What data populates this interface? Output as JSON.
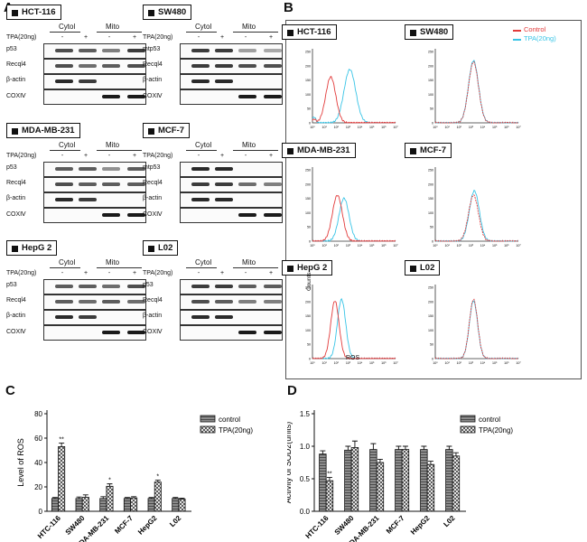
{
  "panels": {
    "a": "A",
    "b": "B",
    "c": "C",
    "d": "D"
  },
  "blots": [
    {
      "cell": "HCT-116",
      "headers": [
        "Cytol",
        "Mito"
      ],
      "treat": "TPA(20ng)",
      "signs": [
        "-",
        "+",
        "-",
        "+"
      ],
      "rows": [
        "p53",
        "Recql4",
        "β-actin",
        "COXⅣ"
      ]
    },
    {
      "cell": "SW480",
      "headers": [
        "Cytol",
        "Mito"
      ],
      "treat": "TPA(20ng)",
      "signs": [
        "-",
        "+",
        "-",
        "+"
      ],
      "rows": [
        "mtp53",
        "Recql4",
        "β-actin",
        "COXⅣ"
      ]
    },
    {
      "cell": "MDA-MB-231",
      "headers": [
        "Cytol",
        "Mito"
      ],
      "treat": "TPA(20ng)",
      "signs": [
        "-",
        "+",
        "-",
        "+"
      ],
      "rows": [
        "p53",
        "Recql4",
        "β-actin",
        "COXⅣ"
      ]
    },
    {
      "cell": "MCF-7",
      "headers": [
        "Cytol",
        "Mito"
      ],
      "treat": "TPA(20ng)",
      "signs": [
        "-",
        "+",
        "-",
        "+"
      ],
      "rows": [
        "mtp53",
        "Recql4",
        "β-actin",
        "COXⅣ"
      ]
    },
    {
      "cell": "HepG 2",
      "headers": [
        "Cytol",
        "Mito"
      ],
      "treat": "TPA(20ng)",
      "signs": [
        "-",
        "+",
        "-",
        "+"
      ],
      "rows": [
        "p53",
        "Recql4",
        "β-actin",
        "COXⅣ"
      ]
    },
    {
      "cell": "L02",
      "headers": [
        "Cytol",
        "Mito"
      ],
      "treat": "TPA(20ng)",
      "signs": [
        "-",
        "+",
        "-",
        "+"
      ],
      "rows": [
        "p53",
        "Recql4",
        "β-actin",
        "COXⅣ"
      ]
    }
  ],
  "flow": {
    "legend": [
      {
        "name": "Control",
        "color": "#e23b3b"
      },
      {
        "name": "TPA(20ng)",
        "color": "#38c4e6"
      }
    ],
    "cells": [
      "HCT-116",
      "SW480",
      "MDA-MB-231",
      "MCF-7",
      "HepG 2",
      "L02"
    ],
    "yticks": [
      "0",
      "50",
      "100",
      "150",
      "200",
      "250"
    ],
    "xticks": [
      "10⁰",
      "10¹",
      "10²",
      "10³",
      "10⁴",
      "10⁵",
      "10⁶",
      "10⁷"
    ],
    "ylabel": "Counts",
    "xlabel": "ROS"
  },
  "chart_data": [
    {
      "type": "bar",
      "title": "",
      "ylabel": "Level of ROS",
      "xlabel": "",
      "ylim": [
        0,
        80
      ],
      "yticks": [
        0,
        20,
        40,
        60,
        80
      ],
      "categories": [
        "HTC-116",
        "SW480",
        "MDA-MB-231",
        "MCF-7",
        "HepG2",
        "L02"
      ],
      "series": [
        {
          "name": "control",
          "values": [
            10.5,
            10.5,
            10.5,
            10.5,
            10.5,
            10.5
          ],
          "errors": [
            0.8,
            1.2,
            1.5,
            0.8,
            0.8,
            0.8
          ],
          "color": "#7a7a7a"
        },
        {
          "name": "TPA(20ng)",
          "values": [
            53,
            11.5,
            20.5,
            11,
            24,
            10
          ],
          "errors": [
            3,
            2,
            2,
            1,
            1.5,
            0.8
          ],
          "color": "#ffffff"
        }
      ],
      "annotations": [
        {
          "category": "HTC-116",
          "series": "TPA(20ng)",
          "text": "**"
        },
        {
          "category": "MDA-MB-231",
          "series": "TPA(20ng)",
          "text": "*"
        },
        {
          "category": "HepG2",
          "series": "TPA(20ng)",
          "text": "*"
        }
      ]
    },
    {
      "type": "bar",
      "title": "",
      "ylabel": "Activity of SOD2(units)",
      "xlabel": "",
      "ylim": [
        0,
        1.5
      ],
      "yticks": [
        "0.0",
        "0.5",
        "1.0",
        "1.5"
      ],
      "categories": [
        "HTC-116",
        "SW480",
        "MDA-MB-231",
        "MCF-7",
        "HepG2",
        "L02"
      ],
      "series": [
        {
          "name": "control",
          "values": [
            0.88,
            0.94,
            0.95,
            0.95,
            0.95,
            0.95
          ],
          "errors": [
            0.05,
            0.06,
            0.09,
            0.05,
            0.05,
            0.05
          ],
          "color": "#7a7a7a"
        },
        {
          "name": "TPA(20ng)",
          "values": [
            0.47,
            0.98,
            0.75,
            0.95,
            0.72,
            0.85
          ],
          "errors": [
            0.05,
            0.1,
            0.05,
            0.05,
            0.05,
            0.05
          ],
          "color": "#ffffff"
        }
      ],
      "annotations": [
        {
          "category": "HTC-116",
          "series": "TPA(20ng)",
          "text": "**"
        }
      ]
    }
  ]
}
